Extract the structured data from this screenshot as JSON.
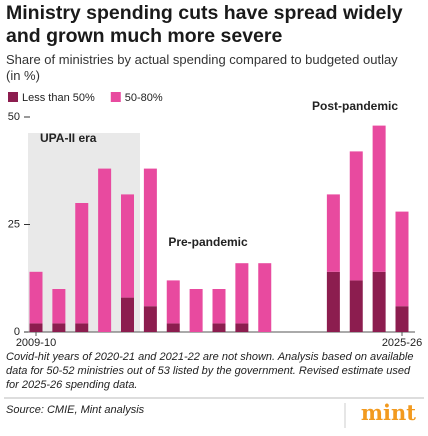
{
  "chart_data": {
    "type": "stacked_bar",
    "title": "Ministry spending cuts have spread widely and grown much more severe",
    "subtitle": "Share of ministries by actual spending compared to budgeted outlay (in %)",
    "categories": [
      "2009-10",
      null,
      null,
      null,
      null,
      null,
      null,
      null,
      null,
      null,
      null,
      null,
      null,
      null,
      null,
      null,
      "2025-26"
    ],
    "series": [
      {
        "name": "Less than 50%",
        "color": "#8c1d4f",
        "values": [
          2,
          2,
          2,
          0,
          8,
          6,
          2,
          0,
          2,
          2,
          0,
          null,
          null,
          14,
          12,
          14,
          6
        ]
      },
      {
        "name": "50-80%",
        "color": "#e84a9f",
        "values": [
          12,
          8,
          28,
          38,
          24,
          32,
          10,
          10,
          8,
          14,
          16,
          null,
          null,
          18,
          30,
          34,
          22
        ]
      }
    ],
    "ylim": [
      0,
      50
    ],
    "yticks": [
      0,
      25,
      50
    ],
    "annotations": [
      "UPA-II era",
      "Pre-pandemic",
      "Post-pandemic"
    ],
    "footnote": "Covid-hit years of 2020-21 and 2021-22 are not shown. Analysis based on available data for 50-52 ministries out of 53 listed by the government. Revised estimate used for 2025-26 spending data.",
    "source": "Source: CMIE, Mint analysis",
    "logo": "mint"
  }
}
